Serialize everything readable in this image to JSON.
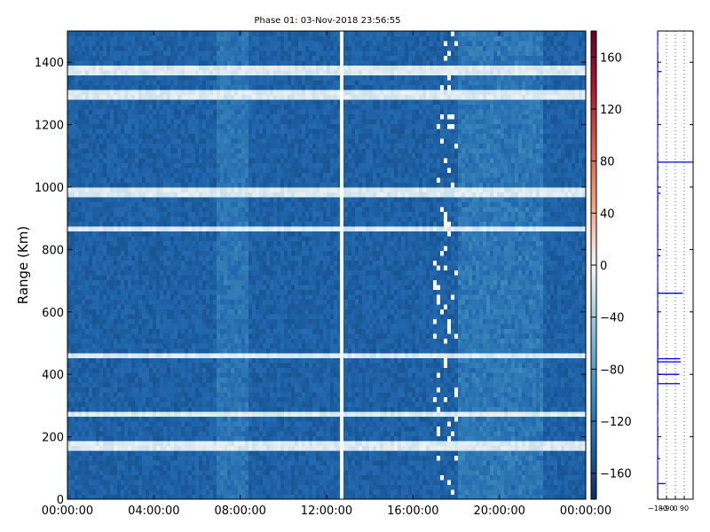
{
  "chart_data": {
    "type": "heatmap",
    "title": "Phase 01: 03-Nov-2018 23:56:55",
    "ylabel": "Range (Km)",
    "xlabel": "",
    "x_ticks": [
      "00:00:00",
      "04:00:00",
      "08:00:00",
      "12:00:00",
      "16:00:00",
      "20:00:00",
      "00:00:00"
    ],
    "x_range_hours": [
      0,
      24
    ],
    "y_ticks": [
      0,
      200,
      400,
      600,
      800,
      1000,
      1200,
      1400
    ],
    "ylim": [
      0,
      1500
    ],
    "colorbar": {
      "colormap": "RdBu_r",
      "range": [
        -180,
        180
      ],
      "ticks": [
        160,
        120,
        80,
        40,
        0,
        -40,
        -80,
        -120,
        -160
      ]
    },
    "data_gap_hours": [
      12.62,
      12.78
    ],
    "side_panel": {
      "ticks": [
        "-180",
        "-90",
        "0",
        "90"
      ],
      "xlim": [
        -180,
        180
      ],
      "ylim": [
        0,
        1500
      ],
      "spikes": [
        {
          "range_km": 1080,
          "value": 180
        },
        {
          "range_km": 660,
          "value": 75
        },
        {
          "range_km": 450,
          "value": 50
        },
        {
          "range_km": 440,
          "value": 55
        },
        {
          "range_km": 400,
          "value": 40
        },
        {
          "range_km": 370,
          "value": 45
        },
        {
          "range_km": 1370,
          "value": -140
        },
        {
          "range_km": 980,
          "value": -150
        },
        {
          "range_km": 780,
          "value": -150
        },
        {
          "range_km": 130,
          "value": -155
        },
        {
          "range_km": 50,
          "value": -100
        }
      ]
    }
  }
}
